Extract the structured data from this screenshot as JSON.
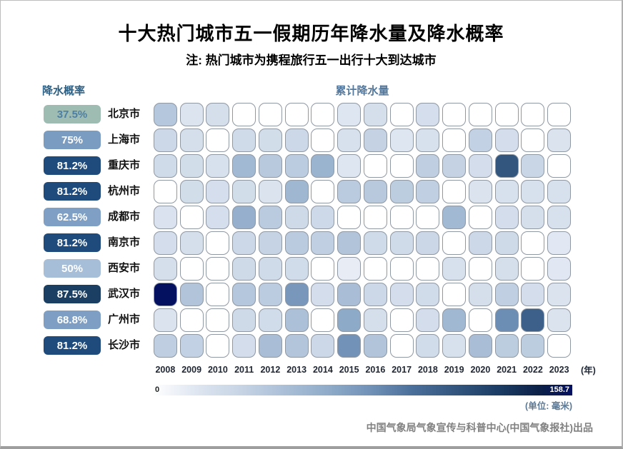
{
  "title": "十大热门城市五一假期历年降水量及降水概率",
  "subtitle": "注: 热门城市为携程旅行五一出行十大到达城市",
  "left_panel": {
    "header": "降水概率"
  },
  "heatmap_header": "累计降水量",
  "axis": {
    "year_suffix": "(年)"
  },
  "colorbar": {
    "min_label": "0",
    "max_label": "158.7",
    "unit_label": "(单位: 毫米)"
  },
  "footer": {
    "credit": "中国气象局气象宣传与科普中心(中国气象报社)出品"
  },
  "colors": {
    "cell_border": "#8f98a3",
    "prob_header_text": "#2d6186",
    "rain_header_text": "#54789c",
    "year_text": "#1f2633",
    "colormap_stops": [
      [
        0.0,
        "#ffffff"
      ],
      [
        0.1,
        "#e0e7f2"
      ],
      [
        0.14,
        "#d5dfec"
      ],
      [
        0.19,
        "#ccd8e7"
      ],
      [
        0.25,
        "#bccce0"
      ],
      [
        0.32,
        "#a9bed6"
      ],
      [
        0.42,
        "#8fabc9"
      ],
      [
        0.52,
        "#7191b7"
      ],
      [
        0.62,
        "#4a6f9a"
      ],
      [
        0.72,
        "#33567f"
      ],
      [
        0.82,
        "#1c3e66"
      ],
      [
        0.92,
        "#0c2148"
      ],
      [
        1.0,
        "#041060"
      ]
    ]
  },
  "chart_data": {
    "type": "heatmap",
    "title": "十大热门城市五一假期历年降水量及降水概率",
    "x_label": "年",
    "unit": "毫米",
    "value_range": [
      0,
      158.7
    ],
    "legend_position": "bottom",
    "x": [
      2008,
      2009,
      2010,
      2011,
      2012,
      2013,
      2014,
      2015,
      2016,
      2017,
      2018,
      2019,
      2020,
      2021,
      2022,
      2023
    ],
    "rows": [
      {
        "city": "北京市",
        "probability": "37.5%",
        "badge_color": "#9fbcb3",
        "badge_text_color": "#4d7fa3",
        "values": [
          44,
          18,
          22,
          0,
          0,
          0,
          0,
          17,
          22,
          0,
          23,
          0,
          0,
          0,
          0,
          0
        ]
      },
      {
        "city": "上海市",
        "probability": "75%",
        "badge_color": "#7b9cc1",
        "badge_text_color": "#ffffff",
        "values": [
          30,
          22,
          0,
          27,
          25,
          30,
          0,
          21,
          35,
          17,
          21,
          0,
          36,
          24,
          0,
          19
        ]
      },
      {
        "city": "重庆市",
        "probability": "81.2%",
        "badge_color": "#1f4b7c",
        "badge_text_color": "#ffffff",
        "values": [
          27,
          25,
          21,
          55,
          42,
          40,
          60,
          17,
          0,
          0,
          38,
          35,
          24,
          114,
          32,
          0
        ]
      },
      {
        "city": "杭州市",
        "probability": "81.2%",
        "badge_color": "#1f4b7c",
        "badge_text_color": "#ffffff",
        "values": [
          0,
          25,
          23,
          25,
          19,
          57,
          0,
          41,
          42,
          39,
          37,
          0,
          19,
          21,
          21,
          21
        ]
      },
      {
        "city": "成都市",
        "probability": "62.5%",
        "badge_color": "#7fa0c4",
        "badge_text_color": "#ffffff",
        "values": [
          20,
          0,
          23,
          63,
          41,
          28,
          29,
          0,
          0,
          0,
          0,
          55,
          0,
          24,
          22,
          21
        ]
      },
      {
        "city": "南京市",
        "probability": "81.2%",
        "badge_color": "#1f4b7c",
        "badge_text_color": "#ffffff",
        "values": [
          24,
          22,
          0,
          30,
          34,
          41,
          37,
          46,
          27,
          27,
          31,
          0,
          30,
          28,
          0,
          15
        ]
      },
      {
        "city": "西安市",
        "probability": "50%",
        "badge_color": "#a6bed8",
        "badge_text_color": "#ffffff",
        "values": [
          22,
          0,
          0,
          28,
          27,
          26,
          0,
          12,
          0,
          0,
          0,
          21,
          0,
          22,
          0,
          15
        ]
      },
      {
        "city": "武汉市",
        "probability": "87.5%",
        "badge_color": "#1b3f63",
        "badge_text_color": "#ffffff",
        "values": [
          158.7,
          46,
          0,
          44,
          40,
          79,
          24,
          51,
          30,
          24,
          26,
          0,
          22,
          37,
          24,
          19
        ]
      },
      {
        "city": "广州市",
        "probability": "68.8%",
        "badge_color": "#7e9fc3",
        "badge_text_color": "#ffffff",
        "values": [
          19,
          0,
          0,
          28,
          26,
          49,
          0,
          67,
          22,
          0,
          24,
          56,
          0,
          84,
          108,
          19
        ]
      },
      {
        "city": "长沙市",
        "probability": "81.2%",
        "badge_color": "#1f4b7c",
        "badge_text_color": "#ffffff",
        "values": [
          38,
          36,
          0,
          24,
          51,
          45,
          30,
          82,
          46,
          0,
          26,
          21,
          51,
          39,
          39,
          0
        ]
      }
    ]
  }
}
